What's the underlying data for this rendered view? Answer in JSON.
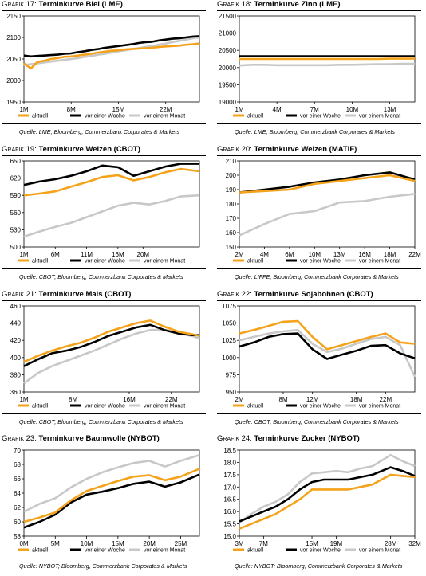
{
  "legend_labels": [
    "aktuell",
    "vor einer Woche",
    "vor einem Monat"
  ],
  "series_colors": [
    "#f5a21b",
    "#000000",
    "#c8c8c8"
  ],
  "chart_data": [
    {
      "id": "p17",
      "type": "line",
      "title_prefix": "Grafik 17:",
      "title": "Terminkurve Blei (LME)",
      "source": "Quelle: LME; Bloomberg, Commerzbank Corporates & Markets",
      "x_ticks": [
        "1M",
        "8M",
        "15M",
        "22M"
      ],
      "x_tick_pos": [
        0,
        7,
        14,
        21
      ],
      "x_range": [
        0,
        26
      ],
      "y_ticks": [
        "1950",
        "2000",
        "2050",
        "2100",
        "2150"
      ],
      "ylim": [
        1950,
        2150
      ],
      "series": [
        {
          "name": "aktuell",
          "values": [
            2040,
            2028,
            2043,
            2046,
            2050,
            2052,
            2055,
            2056,
            2058,
            2060,
            2062,
            2065,
            2067,
            2069,
            2070,
            2072,
            2073,
            2074,
            2075,
            2076,
            2078,
            2079,
            2080,
            2081,
            2083,
            2084,
            2086
          ]
        },
        {
          "name": "vor einer Woche",
          "values": [
            2058,
            2056,
            2057,
            2058,
            2059,
            2060,
            2062,
            2063,
            2066,
            2068,
            2071,
            2073,
            2076,
            2078,
            2080,
            2082,
            2084,
            2087,
            2089,
            2090,
            2093,
            2095,
            2097,
            2098,
            2100,
            2102,
            2103
          ]
        },
        {
          "name": "vor einem Monat",
          "values": [
            2036,
            2038,
            2040,
            2042,
            2044,
            2046,
            2048,
            2050,
            2052,
            2055,
            2057,
            2060,
            2062,
            2065,
            2068,
            2070,
            2073,
            2075,
            2078,
            2080,
            2083,
            2086,
            2089,
            2092,
            2095,
            2098,
            2100
          ]
        }
      ]
    },
    {
      "id": "p18",
      "type": "line",
      "title_prefix": "Grafik 18:",
      "title": "Terminkurve Zinn (LME)",
      "source": "Quelle: LME; Bloomberg, Commerzbank Corporates & Markets",
      "x_ticks": [
        "1M",
        "4M",
        "7M",
        "10M",
        "13M"
      ],
      "x_tick_pos": [
        0,
        3,
        6,
        9,
        12
      ],
      "x_range": [
        0,
        14
      ],
      "y_ticks": [
        "19000",
        "19500",
        "20000",
        "20500",
        "21000",
        "21500"
      ],
      "ylim": [
        19000,
        21500
      ],
      "series": [
        {
          "name": "aktuell",
          "values": [
            20250,
            20250,
            20250,
            20250,
            20250,
            20250,
            20250,
            20250,
            20250,
            20250,
            20250,
            20250,
            20260,
            20260,
            20260
          ]
        },
        {
          "name": "vor einer Woche",
          "values": [
            20330,
            20330,
            20330,
            20330,
            20330,
            20330,
            20330,
            20330,
            20330,
            20330,
            20330,
            20330,
            20330,
            20330,
            20330
          ]
        },
        {
          "name": "vor einem Monat",
          "values": [
            20060,
            20080,
            20080,
            20070,
            20070,
            20070,
            20070,
            20070,
            20080,
            20080,
            20090,
            20100,
            20100,
            20110,
            20110
          ]
        }
      ]
    },
    {
      "id": "p19",
      "type": "line",
      "title_prefix": "Grafik 19:",
      "title": "Terminkurve Weizen (CBOT)",
      "source": "Quelle: CBOT; Bloomberg, Commerzbank Corporates & Markets",
      "x_ticks": [
        "1M",
        "6M",
        "11M",
        "16M",
        "20M"
      ],
      "x_tick_pos": [
        0,
        5,
        10,
        15,
        19
      ],
      "x_range": [
        0,
        28
      ],
      "y_ticks": [
        "500",
        "530",
        "560",
        "590",
        "620",
        "650"
      ],
      "ylim": [
        500,
        650
      ],
      "series": [
        {
          "name": "aktuell",
          "x": [
            0,
            2.5,
            5,
            7.5,
            10,
            12.5,
            15,
            17.5,
            20,
            22.5,
            25,
            28
          ],
          "values": [
            590,
            593,
            597,
            605,
            613,
            622,
            625,
            616,
            622,
            630,
            636,
            632
          ]
        },
        {
          "name": "vor einer Woche",
          "x": [
            0,
            2.5,
            5,
            7.5,
            10,
            12.5,
            15,
            17.5,
            20,
            22.5,
            25,
            28
          ],
          "values": [
            608,
            614,
            618,
            624,
            632,
            642,
            639,
            624,
            632,
            640,
            645,
            645
          ]
        },
        {
          "name": "vor einem Monat",
          "x": [
            0,
            2.5,
            5,
            7.5,
            10,
            12.5,
            15,
            17.5,
            20,
            22.5,
            25,
            28
          ],
          "values": [
            518,
            527,
            535,
            542,
            552,
            562,
            572,
            577,
            574,
            580,
            588,
            590
          ]
        }
      ]
    },
    {
      "id": "p20",
      "type": "line",
      "title_prefix": "Grafik 20:",
      "title": "Terminkurve Weizen (MATIF)",
      "source": "Quelle: LIFFE; Bloomberg, Commerzbank Corporates & Markets",
      "x_ticks": [
        "2M",
        "4M",
        "6M",
        "10M",
        "13M",
        "16M",
        "18M",
        "22M"
      ],
      "x_tick_pos": [
        0,
        1,
        2,
        3,
        4,
        5,
        6,
        7
      ],
      "x_range": [
        0,
        7
      ],
      "y_ticks": [
        "150",
        "160",
        "170",
        "180",
        "190",
        "200",
        "210"
      ],
      "ylim": [
        150,
        210
      ],
      "series": [
        {
          "name": "aktuell",
          "values": [
            188,
            189,
            190,
            194,
            196,
            198,
            200,
            196
          ]
        },
        {
          "name": "vor einer Woche",
          "values": [
            188,
            190,
            192,
            195,
            197,
            200,
            202,
            197
          ]
        },
        {
          "name": "vor einem Monat",
          "values": [
            158,
            166,
            173,
            175,
            181,
            182,
            185,
            187
          ]
        }
      ]
    },
    {
      "id": "p21",
      "type": "line",
      "title_prefix": "Grafik 21:",
      "title": "Terminkurve Mais (CBOT)",
      "source": "Quelle: CBOT; Bloomberg, Commerzbank Corporates & Markets",
      "x_ticks": [
        "1M",
        "8M",
        "16M",
        "22M"
      ],
      "x_tick_pos": [
        0,
        7,
        15,
        21
      ],
      "x_range": [
        0,
        25
      ],
      "y_ticks": [
        "360",
        "380",
        "400",
        "420",
        "440",
        "460"
      ],
      "ylim": [
        360,
        460
      ],
      "series": [
        {
          "name": "aktuell",
          "x": [
            0,
            2,
            4,
            6,
            8,
            10,
            12,
            14,
            16,
            18,
            20,
            22,
            24,
            25
          ],
          "values": [
            395,
            402,
            408,
            413,
            417,
            423,
            430,
            435,
            440,
            443,
            436,
            430,
            427,
            425
          ]
        },
        {
          "name": "vor einer Woche",
          "x": [
            0,
            2,
            4,
            6,
            8,
            10,
            12,
            14,
            16,
            18,
            20,
            22,
            24,
            25
          ],
          "values": [
            390,
            398,
            405,
            408,
            412,
            418,
            425,
            430,
            435,
            438,
            432,
            428,
            426,
            426
          ]
        },
        {
          "name": "vor einem Monat",
          "x": [
            0,
            2,
            4,
            6,
            8,
            10,
            12,
            14,
            16,
            18,
            20,
            22,
            24,
            25
          ],
          "values": [
            370,
            382,
            390,
            396,
            402,
            408,
            415,
            422,
            428,
            432,
            432,
            428,
            425,
            422
          ]
        }
      ]
    },
    {
      "id": "p22",
      "type": "line",
      "title_prefix": "Grafik 22:",
      "title": "Terminkurve Sojabohnen (CBOT)",
      "source": "Quelle: CBOT; Bloomberg, Commerzbank Corporates & Markets",
      "x_ticks": [
        "2M",
        "8M",
        "12M",
        "18M",
        "22M"
      ],
      "x_tick_pos": [
        0,
        6,
        10,
        16,
        20
      ],
      "x_range": [
        0,
        24
      ],
      "y_ticks": [
        "950",
        "975",
        "1000",
        "1025",
        "1050",
        "1075"
      ],
      "ylim": [
        950,
        1075
      ],
      "series": [
        {
          "name": "aktuell",
          "x": [
            0,
            2,
            4,
            6,
            8,
            10,
            12,
            14,
            16,
            18,
            20,
            22,
            24
          ],
          "values": [
            1035,
            1040,
            1046,
            1052,
            1053,
            1030,
            1012,
            1018,
            1024,
            1030,
            1035,
            1022,
            1020
          ]
        },
        {
          "name": "vor einer Woche",
          "x": [
            0,
            2,
            4,
            6,
            8,
            10,
            12,
            14,
            16,
            18,
            20,
            22,
            24
          ],
          "values": [
            1016,
            1022,
            1030,
            1034,
            1035,
            1012,
            998,
            1004,
            1010,
            1017,
            1018,
            1006,
            999
          ]
        },
        {
          "name": "vor einem Monat",
          "x": [
            0,
            2,
            4,
            6,
            8,
            10,
            12,
            14,
            16,
            18,
            20,
            22,
            24
          ],
          "values": [
            1025,
            1030,
            1035,
            1038,
            1040,
            1020,
            1008,
            1013,
            1020,
            1027,
            1030,
            1018,
            972
          ]
        }
      ]
    },
    {
      "id": "p23",
      "type": "line",
      "title_prefix": "Grafik 23:",
      "title": "Terminkurve Baumwolle (NYBOT)",
      "source": "Quelle: NYBOT; Bloomberg, Commerzbank Corporates & Markets",
      "x_ticks": [
        "0M",
        "5M",
        "10M",
        "15M",
        "20M",
        "25M"
      ],
      "x_tick_pos": [
        0,
        5,
        10,
        15,
        20,
        25
      ],
      "x_range": [
        0,
        28
      ],
      "y_ticks": [
        "58",
        "60",
        "62",
        "64",
        "66",
        "68",
        "70"
      ],
      "ylim": [
        58,
        70
      ],
      "series": [
        {
          "name": "aktuell",
          "x": [
            0,
            2.5,
            5,
            7.5,
            10,
            12.5,
            15,
            17.5,
            20,
            22.5,
            25,
            28
          ],
          "values": [
            60.0,
            60.6,
            61.3,
            63.0,
            64.3,
            65.0,
            65.7,
            66.3,
            66.5,
            65.8,
            66.3,
            67.4
          ]
        },
        {
          "name": "vor einer Woche",
          "x": [
            0,
            2.5,
            5,
            7.5,
            10,
            12.5,
            15,
            17.5,
            20,
            22.5,
            25,
            28
          ],
          "values": [
            59.2,
            60.0,
            61.0,
            62.7,
            63.8,
            64.2,
            64.7,
            65.3,
            65.6,
            64.9,
            65.5,
            66.6
          ]
        },
        {
          "name": "vor einem Monat",
          "x": [
            0,
            2.5,
            5,
            7.5,
            10,
            12.5,
            15,
            17.5,
            20,
            22.5,
            25,
            28
          ],
          "values": [
            61.4,
            62.5,
            63.3,
            64.8,
            66.0,
            66.9,
            67.6,
            68.2,
            68.5,
            67.7,
            68.5,
            69.3
          ]
        }
      ]
    },
    {
      "id": "p24",
      "type": "line",
      "title_prefix": "Grafik 24:",
      "title": "Terminkurve Zucker (NYBOT)",
      "source": "Quelle: NYBOT; Bloomberg, Commerzbank Corporates & Markets",
      "x_ticks": [
        "3M",
        "7M",
        "15M",
        "19M",
        "28M",
        "32M"
      ],
      "x_tick_pos": [
        0,
        4,
        12,
        16,
        25,
        29
      ],
      "x_range": [
        0,
        29
      ],
      "y_ticks": [
        "15.0",
        "15.5",
        "16.0",
        "16.5",
        "17.0",
        "17.5",
        "18.0",
        "18.5"
      ],
      "ylim": [
        15.0,
        18.5
      ],
      "series": [
        {
          "name": "aktuell",
          "x": [
            0,
            2,
            4,
            6,
            8,
            10,
            12,
            14,
            16,
            18,
            20,
            22,
            25,
            27,
            29
          ],
          "values": [
            15.3,
            15.5,
            15.7,
            15.9,
            16.2,
            16.5,
            16.9,
            16.9,
            16.9,
            16.9,
            17.0,
            17.1,
            17.5,
            17.45,
            17.4
          ]
        },
        {
          "name": "vor einer Woche",
          "x": [
            0,
            2,
            4,
            6,
            8,
            10,
            12,
            14,
            16,
            18,
            20,
            22,
            25,
            27,
            29
          ],
          "values": [
            15.6,
            15.8,
            16.0,
            16.2,
            16.5,
            16.9,
            17.2,
            17.3,
            17.3,
            17.3,
            17.4,
            17.5,
            17.8,
            17.65,
            17.45
          ]
        },
        {
          "name": "vor einem Monat",
          "x": [
            0,
            2,
            4,
            6,
            8,
            10,
            12,
            14,
            16,
            18,
            20,
            22,
            25,
            27,
            29
          ],
          "values": [
            15.55,
            15.9,
            16.2,
            16.4,
            16.7,
            17.2,
            17.55,
            17.6,
            17.65,
            17.6,
            17.75,
            17.85,
            18.3,
            18.05,
            17.85
          ]
        }
      ]
    }
  ]
}
